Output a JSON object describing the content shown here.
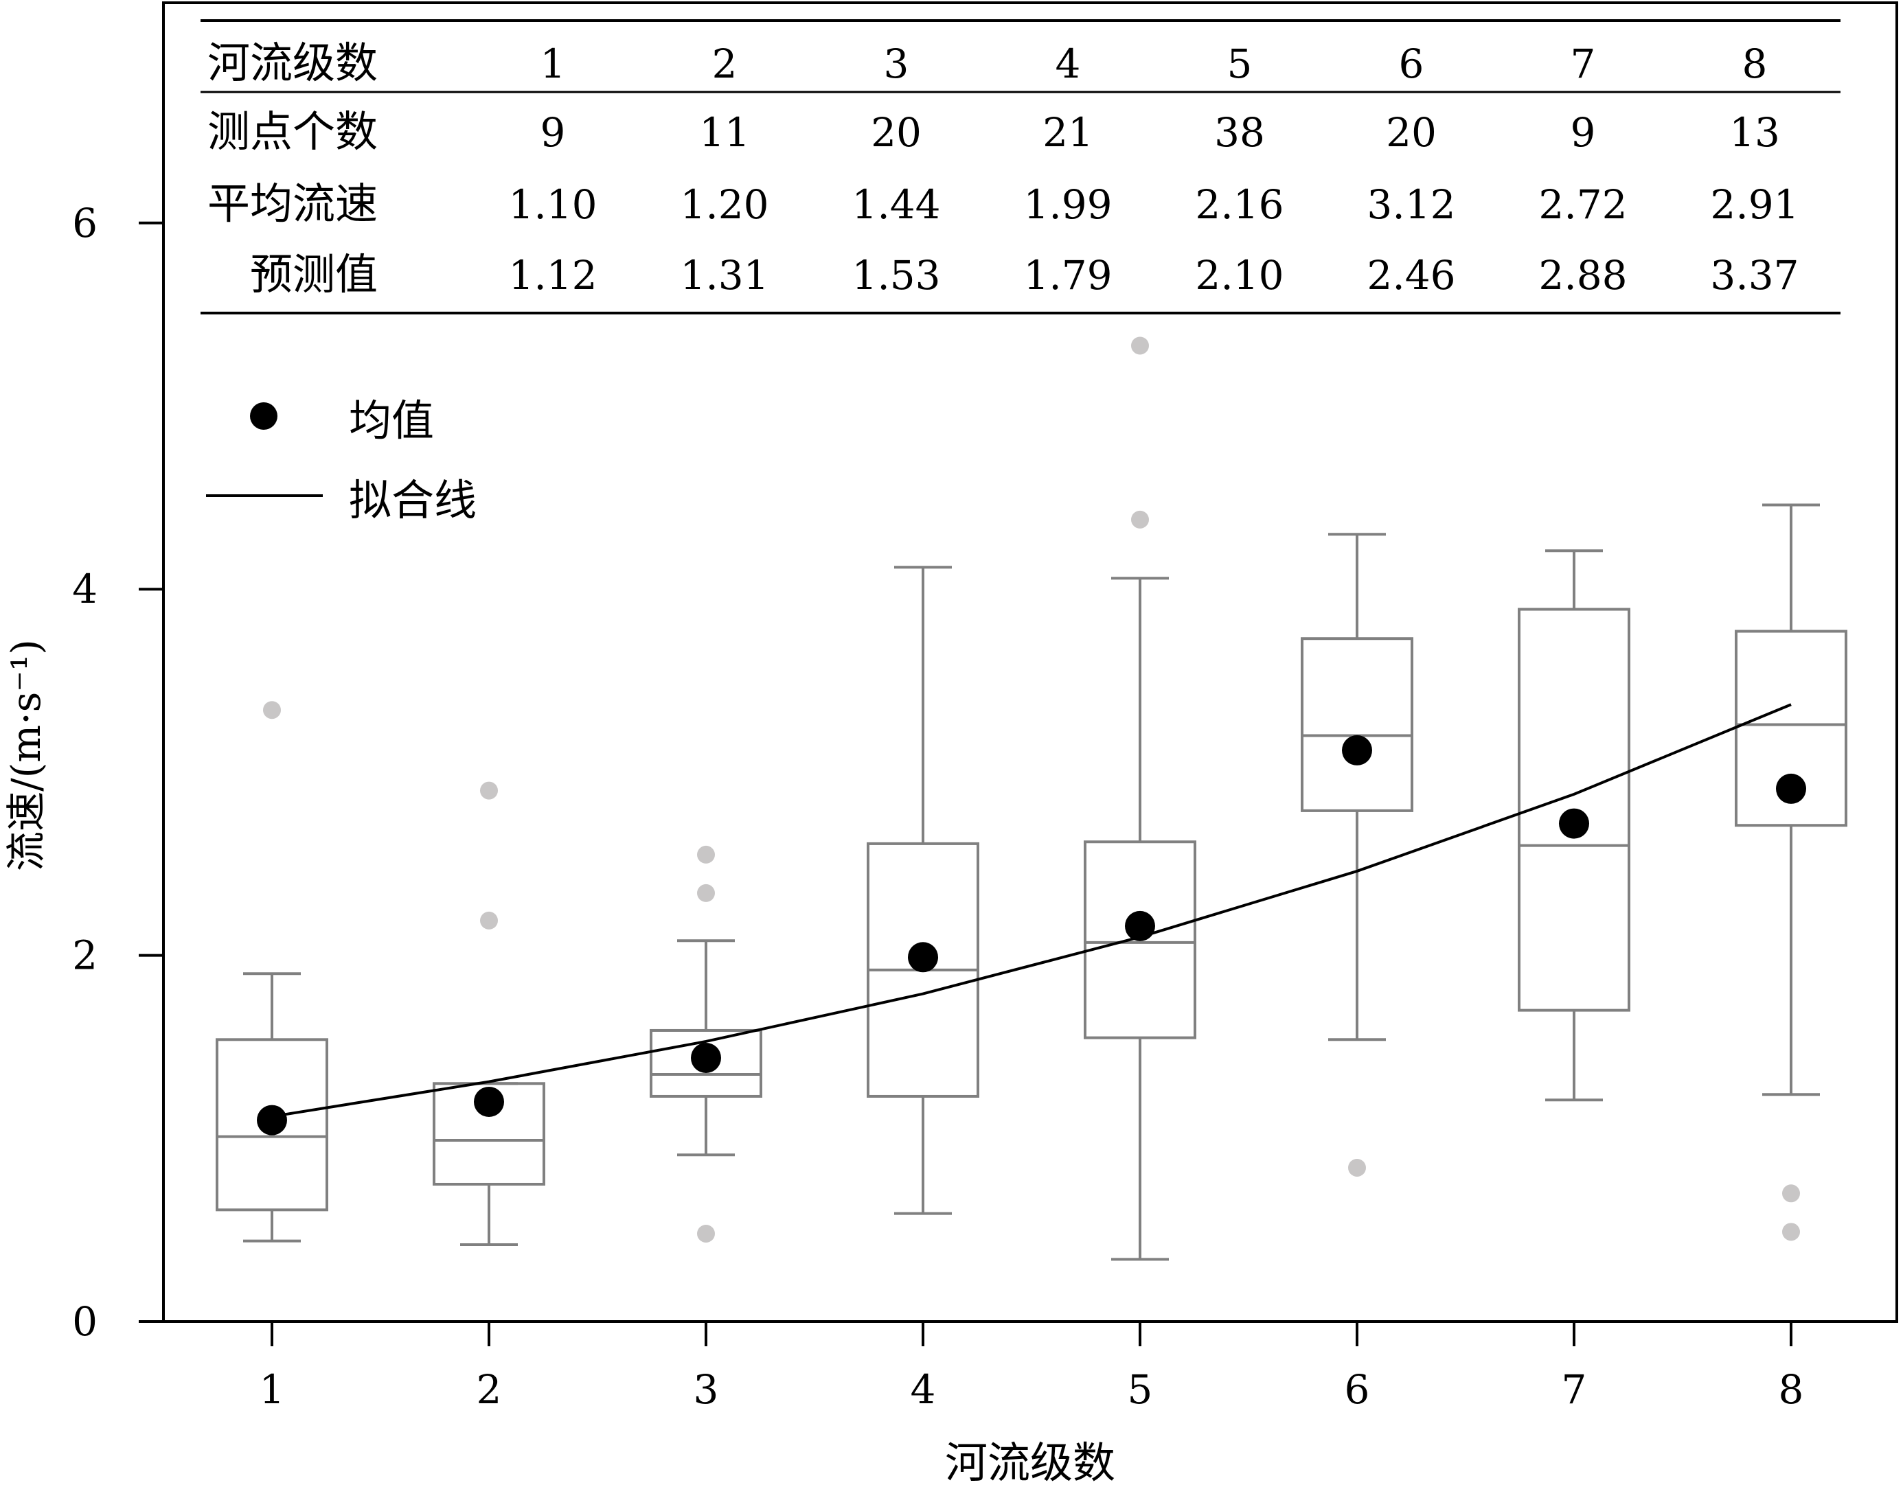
{
  "chart_data": {
    "type": "box",
    "x_categories": [
      "1",
      "2",
      "3",
      "4",
      "5",
      "6",
      "7",
      "8"
    ],
    "xlabel": "河流级数",
    "ylabel": "流速/(m·s⁻¹)",
    "ylim": [
      0,
      6.6
    ],
    "yticks": [
      0,
      2,
      4,
      6
    ],
    "boxes": [
      {
        "x": 1,
        "whisker_low": 0.44,
        "q1": 0.61,
        "median": 1.01,
        "q3": 1.54,
        "whisker_high": 1.9,
        "outliers": [
          3.34
        ]
      },
      {
        "x": 2,
        "whisker_low": 0.42,
        "q1": 0.75,
        "median": 0.99,
        "q3": 1.3,
        "whisker_high": 1.3,
        "outliers": [
          2.9,
          2.19
        ]
      },
      {
        "x": 3,
        "whisker_low": 0.91,
        "q1": 1.23,
        "median": 1.35,
        "q3": 1.59,
        "whisker_high": 2.08,
        "outliers": [
          2.55,
          2.34,
          0.48
        ]
      },
      {
        "x": 4,
        "whisker_low": 0.59,
        "q1": 1.23,
        "median": 1.92,
        "q3": 2.61,
        "whisker_high": 4.12,
        "outliers": []
      },
      {
        "x": 5,
        "whisker_low": 0.34,
        "q1": 1.55,
        "median": 2.07,
        "q3": 2.62,
        "whisker_high": 4.06,
        "outliers": [
          5.33,
          4.38
        ]
      },
      {
        "x": 6,
        "whisker_low": 1.54,
        "q1": 2.79,
        "median": 3.2,
        "q3": 3.73,
        "whisker_high": 4.3,
        "outliers": [
          0.84
        ]
      },
      {
        "x": 7,
        "whisker_low": 1.21,
        "q1": 1.7,
        "median": 2.6,
        "q3": 3.89,
        "whisker_high": 4.21,
        "outliers": []
      },
      {
        "x": 8,
        "whisker_low": 1.24,
        "q1": 2.71,
        "median": 3.26,
        "q3": 3.77,
        "whisker_high": 4.46,
        "outliers": [
          0.7,
          0.49
        ]
      }
    ],
    "mean": {
      "x": [
        1,
        2,
        3,
        4,
        5,
        6,
        7,
        8
      ],
      "y": [
        1.1,
        1.2,
        1.44,
        1.99,
        2.16,
        3.12,
        2.72,
        2.91
      ]
    },
    "fit_line": {
      "x": [
        1,
        2,
        3,
        4,
        5,
        6,
        7,
        8
      ],
      "y": [
        1.12,
        1.31,
        1.53,
        1.79,
        2.1,
        2.46,
        2.88,
        3.37
      ]
    },
    "legend": {
      "position": "upper-left",
      "items": [
        "均值",
        "拟合线"
      ]
    },
    "table": {
      "rows": [
        {
          "label": "河流级数",
          "values": [
            "1",
            "2",
            "3",
            "4",
            "5",
            "6",
            "7",
            "8"
          ]
        },
        {
          "label": "测点个数",
          "values": [
            "9",
            "11",
            "20",
            "21",
            "38",
            "20",
            "9",
            "13"
          ]
        },
        {
          "label": "平均流速",
          "values": [
            "1.10",
            "1.20",
            "1.44",
            "1.99",
            "2.16",
            "3.12",
            "2.72",
            "2.91"
          ]
        },
        {
          "label": "预测值",
          "values": [
            "1.12",
            "1.31",
            "1.53",
            "1.79",
            "2.10",
            "2.46",
            "2.88",
            "3.37"
          ]
        }
      ]
    },
    "colors": {
      "box": "#808080",
      "outlier": "#c8c6c6",
      "mean": "#000000",
      "line": "#000000",
      "axis": "#000000"
    },
    "grid": false
  }
}
